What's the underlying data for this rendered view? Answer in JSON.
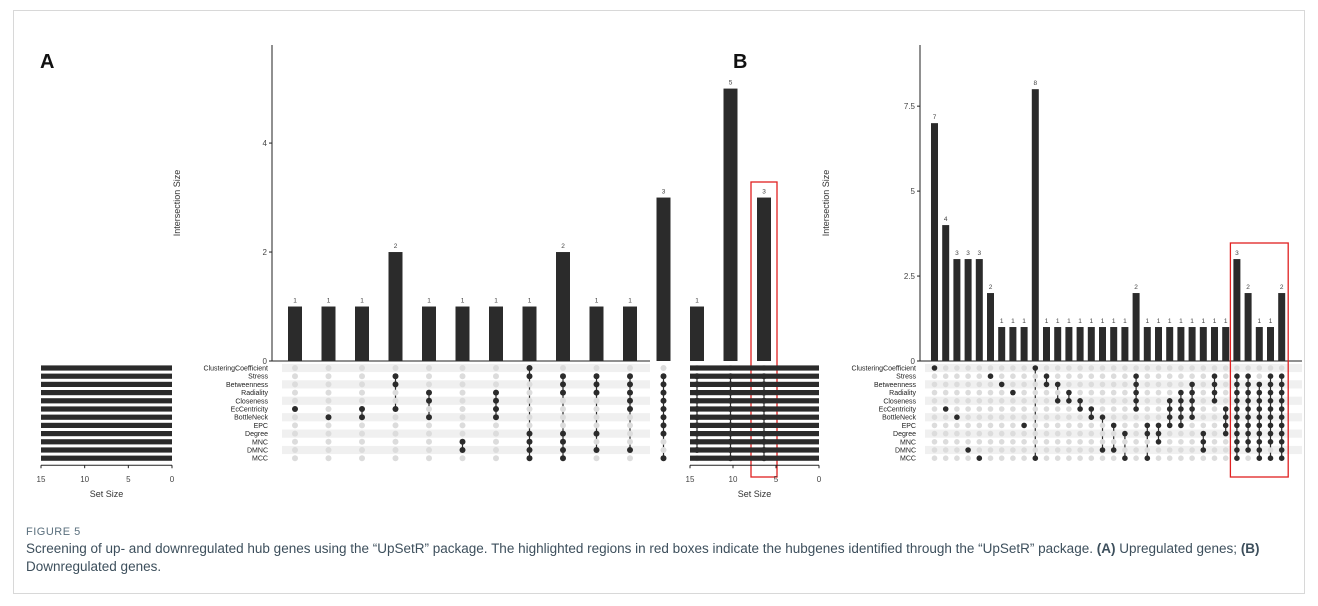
{
  "figure": {
    "label": "FIGURE 5",
    "caption_main": "Screening of up- and downregulated hub genes using the “UpSetR” package. The highlighted regions in red boxes indicate the hubgenes identified through the “UpSetR” package. ",
    "caption_a_tag": "(A)",
    "caption_a_text": " Upregulated genes; ",
    "caption_b_tag": "(B)",
    "caption_b_text": " Downregulated genes."
  },
  "colors": {
    "bar": "#2b2b2b",
    "dot_on": "#2b2b2b",
    "dot_off": "#dcdcdc",
    "highlight": "#e02020",
    "stripe": "#f0f0f0"
  },
  "chart_data": [
    {
      "type": "bar",
      "panel_label": "A",
      "ylabel": "Intersection Size",
      "ylim": [
        0,
        5.8
      ],
      "yticks": [
        0,
        2,
        4
      ],
      "set_size_label": "Set Size",
      "set_size_ticks": [
        15,
        10,
        5,
        0
      ],
      "set_size_xlim": [
        15,
        0
      ],
      "sets": [
        "ClusteringCoefficient",
        "Stress",
        "Betweenness",
        "Radiality",
        "Closeness",
        "EcCentricity",
        "BottleNeck",
        "EPC",
        "Degree",
        "MNC",
        "DMNC",
        "MCC"
      ],
      "set_sizes": [
        15,
        15,
        15,
        15,
        15,
        15,
        15,
        15,
        15,
        15,
        15,
        15
      ],
      "values": [
        1,
        1,
        1,
        2,
        1,
        1,
        1,
        1,
        2,
        1,
        1,
        3,
        1,
        5,
        3
      ],
      "memberships": [
        [
          5
        ],
        [
          6
        ],
        [
          5,
          6
        ],
        [
          1,
          2,
          5
        ],
        [
          3,
          4,
          6
        ],
        [
          9,
          10
        ],
        [
          3,
          4,
          5,
          6
        ],
        [
          0,
          1,
          8,
          9,
          10,
          11
        ],
        [
          1,
          2,
          3,
          8,
          9,
          10,
          11
        ],
        [
          1,
          2,
          3,
          8,
          10
        ],
        [
          1,
          2,
          3,
          4,
          5,
          10
        ],
        [
          1,
          2,
          3,
          4,
          5,
          6,
          7,
          8,
          11
        ],
        [
          1,
          2,
          3,
          4,
          5,
          6,
          7,
          8,
          9,
          10
        ],
        [
          1,
          2,
          3,
          4,
          5,
          6,
          7,
          8,
          9,
          10,
          11
        ],
        [
          1,
          2,
          3,
          4,
          5,
          6,
          7,
          8,
          9,
          10,
          11
        ]
      ],
      "highlight": [
        14
      ]
    },
    {
      "type": "bar",
      "panel_label": "B",
      "ylabel": "Intersection Size",
      "ylim": [
        0,
        9.3
      ],
      "yticks": [
        0.0,
        2.5,
        5.0,
        7.5
      ],
      "set_size_label": "Set Size",
      "set_size_ticks": [
        15,
        10,
        5,
        0
      ],
      "set_size_xlim": [
        15,
        0
      ],
      "sets": [
        "ClusteringCoefficient",
        "Stress",
        "Betweenness",
        "Radiality",
        "Closeness",
        "EcCentricity",
        "BottleNeck",
        "EPC",
        "Degree",
        "MNC",
        "DMNC",
        "MCC"
      ],
      "set_sizes": [
        15,
        15,
        15,
        15,
        15,
        15,
        15,
        15,
        15,
        15,
        15,
        15
      ],
      "values": [
        7,
        4,
        3,
        3,
        3,
        2,
        1,
        1,
        1,
        8,
        1,
        1,
        1,
        1,
        1,
        1,
        1,
        1,
        2,
        1,
        1,
        1,
        1,
        1,
        1,
        1,
        1,
        3,
        2,
        1,
        1,
        2
      ],
      "memberships": [
        [
          0
        ],
        [
          5
        ],
        [
          6
        ],
        [
          10
        ],
        [
          11
        ],
        [
          1
        ],
        [
          2
        ],
        [
          3
        ],
        [
          7
        ],
        [
          0,
          11
        ],
        [
          1,
          2
        ],
        [
          2,
          4
        ],
        [
          3,
          4
        ],
        [
          4,
          5
        ],
        [
          5,
          6
        ],
        [
          6,
          10
        ],
        [
          7,
          10
        ],
        [
          8,
          11
        ],
        [
          1,
          2,
          3,
          4,
          5
        ],
        [
          7,
          8,
          11
        ],
        [
          7,
          8,
          9
        ],
        [
          4,
          5,
          6,
          7
        ],
        [
          3,
          4,
          5,
          6,
          7
        ],
        [
          2,
          3,
          4,
          5,
          6
        ],
        [
          8,
          9,
          10
        ],
        [
          1,
          2,
          3,
          4
        ],
        [
          5,
          6,
          7,
          8
        ],
        [
          1,
          2,
          3,
          4,
          5,
          6,
          7,
          8,
          9,
          10,
          11
        ],
        [
          1,
          2,
          3,
          4,
          5,
          6,
          7,
          8,
          9,
          10
        ],
        [
          2,
          3,
          4,
          5,
          6,
          7,
          8,
          9,
          10,
          11
        ],
        [
          1,
          2,
          3,
          4,
          5,
          6,
          7,
          8,
          9,
          11
        ],
        [
          1,
          2,
          3,
          4,
          5,
          6,
          7,
          8,
          9,
          10,
          11
        ]
      ],
      "highlight": [
        27,
        28,
        29,
        30,
        31
      ]
    }
  ]
}
